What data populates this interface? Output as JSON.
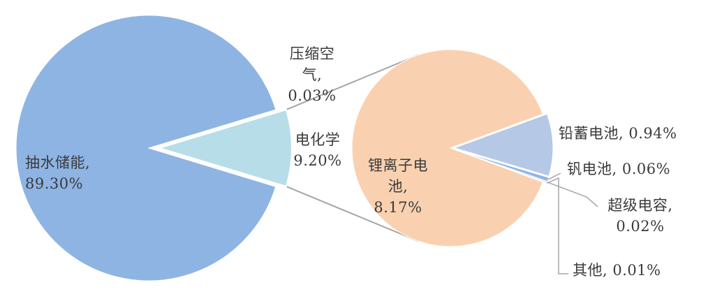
{
  "chart_data": [
    {
      "type": "pie",
      "title": "",
      "categories": [
        "抽水储能",
        "电化学",
        "压缩空气"
      ],
      "values": [
        89.3,
        9.2,
        0.03
      ],
      "labels": [
        {
          "lines": [
            "抽水储能,",
            "89.30%"
          ]
        },
        {
          "lines": [
            "电化学",
            "9.20%"
          ]
        },
        {
          "lines": [
            "压缩空",
            "气,",
            "0.03%"
          ]
        }
      ],
      "colors": [
        "#8EB4E3",
        "#B7DEE8",
        "#A6A6A6"
      ],
      "legend": "none",
      "exploded_category": "电化学"
    },
    {
      "type": "pie",
      "title": "",
      "categories": [
        "锂离子电池",
        "铅蓄电池",
        "钒电池",
        "超级电容",
        "其他"
      ],
      "values": [
        8.17,
        0.94,
        0.06,
        0.02,
        0.01
      ],
      "labels": [
        {
          "lines": [
            "锂离子电",
            "池,",
            "8.17%"
          ]
        },
        {
          "lines": [
            "铅蓄电池, 0.94%"
          ]
        },
        {
          "lines": [
            "钒电池, 0.06%"
          ]
        },
        {
          "lines": [
            "超级电容,",
            "0.02%"
          ]
        },
        {
          "lines": [
            "其他, 0.01%"
          ]
        }
      ],
      "colors": [
        "#FAD1B0",
        "#B5C9E6",
        "#8EB4E3",
        "#B7DEE8",
        "#A6A6A6"
      ],
      "legend": "none",
      "detail_of": "电化学"
    }
  ]
}
